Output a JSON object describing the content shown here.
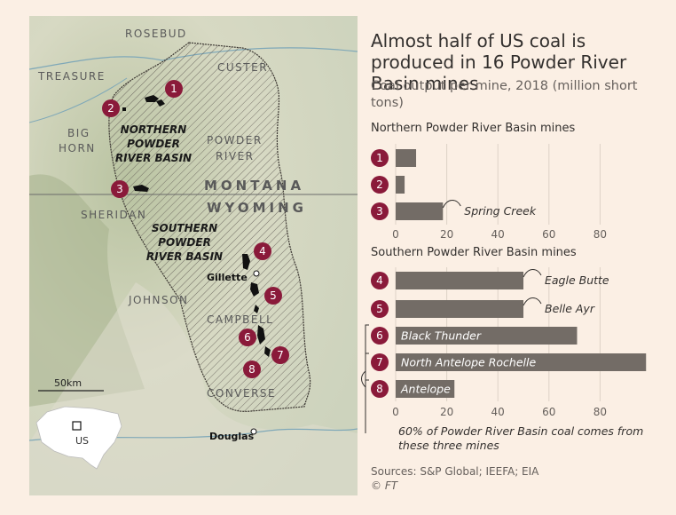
{
  "headline": "Almost half of US coal is produced in 16 Powder River Basin mines",
  "subtitle": "Coal output per mine, 2018 (million short tons)",
  "sources": "Sources: S&P Global; IEEFA; EIA",
  "copyright": "© FT",
  "note": "60% of Powder River Basin coal comes from these three mines",
  "colors": {
    "bar": "#736c66",
    "marker": "#8a1a3a",
    "background": "#fbefe4",
    "text": "#33302e"
  },
  "map": {
    "county_labels": [
      "ROSEBUD",
      "TREASURE",
      "CUSTER",
      "BIG",
      "HORN",
      "POWDER",
      "RIVER",
      "SHERIDAN",
      "JOHNSON",
      "CAMPBELL",
      "CONVERSE"
    ],
    "state_labels": [
      "MONTANA",
      "WYOMING"
    ],
    "basin_labels": {
      "northern": [
        "NORTHERN",
        "POWDER",
        "RIVER BASIN"
      ],
      "southern": [
        "SOUTHERN",
        "POWDER",
        "RIVER BASIN"
      ]
    },
    "towns": [
      "Gillette",
      "Douglas"
    ],
    "scale": "50km",
    "inset_label": "US",
    "mine_markers": [
      "1",
      "2",
      "3",
      "4",
      "5",
      "6",
      "7",
      "8"
    ]
  },
  "chart_data": [
    {
      "type": "bar",
      "orientation": "horizontal",
      "title": "Northern Powder River Basin mines",
      "categories": [
        "1",
        "2",
        "3"
      ],
      "values": [
        8,
        3.5,
        18.5
      ],
      "mine_name_labels": [
        "",
        "",
        "Spring Creek"
      ],
      "xlim": [
        0,
        100
      ],
      "xticks": [
        0,
        20,
        40,
        60,
        80
      ]
    },
    {
      "type": "bar",
      "orientation": "horizontal",
      "title": "Southern Powder River Basin mines",
      "categories": [
        "4",
        "5",
        "6",
        "7",
        "8"
      ],
      "values": [
        50,
        50,
        71,
        98,
        23
      ],
      "mine_name_labels": [
        "Eagle Butte",
        "Belle Ayr",
        "Black Thunder",
        "North Antelope Rochelle",
        "Antelope"
      ],
      "xlim": [
        0,
        100
      ],
      "xticks": [
        0,
        20,
        40,
        60,
        80
      ]
    }
  ]
}
